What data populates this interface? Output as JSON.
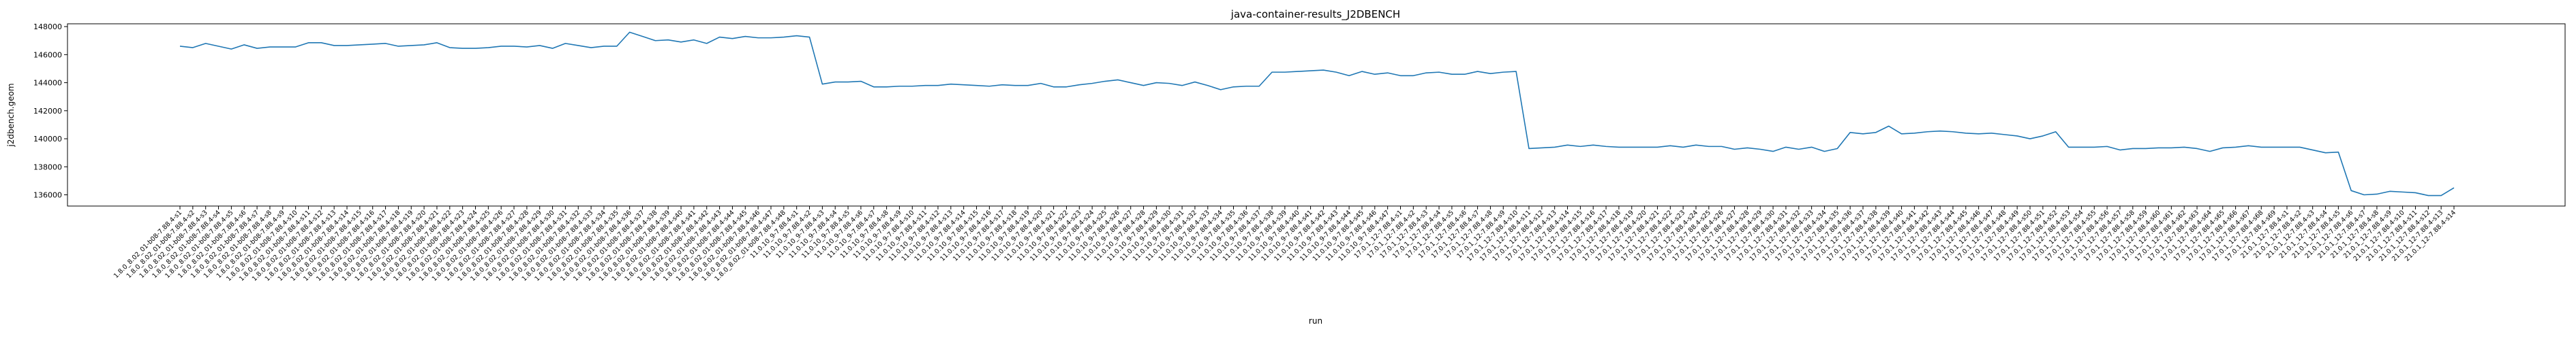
{
  "chart_data": {
    "type": "line",
    "title": "java-container-results_J2DBENCH",
    "xlabel": "run",
    "ylabel": "j2dbench.geom",
    "ylim": [
      135200,
      148200
    ],
    "yticks": [
      136000,
      138000,
      140000,
      142000,
      144000,
      146000,
      148000
    ],
    "ytick_labels": [
      "136000",
      "138000",
      "140000",
      "142000",
      "144000",
      "146000",
      "148000"
    ],
    "grid": false,
    "legend": "none",
    "line_color": "#1f77b4",
    "x": [
      "1.8.0_8.02_01-b08-7.88.4-s1",
      "1.8.0_8.02_01-b08-7.88.4-s2",
      "1.8.0_8.02_01-b08-7.88.4-s3",
      "1.8.0_8.02_01-b08-7.88.4-s4",
      "1.8.0_8.02_01-b08-7.88.4-s5",
      "1.8.0_8.02_01-b08-7.88.4-s6",
      "1.8.0_8.02_01-b08-7.88.4-s7",
      "1.8.0_8.02_01-b08-7.88.4-s8",
      "1.8.0_8.02_01-b08-7.88.4-s9",
      "1.8.0_8.02_01-b08-7.88.4-s10",
      "1.8.0_8.02_01-b08-7.88.4-s11",
      "1.8.0_8.02_01-b08-7.88.4-s12",
      "1.8.0_8.02_01-b08-7.88.4-s13",
      "1.8.0_8.02_01-b08-7.88.4-s14",
      "1.8.0_8.02_01-b08-7.88.4-s15",
      "1.8.0_8.02_01-b08-7.88.4-s16",
      "1.8.0_8.02_01-b08-7.88.4-s17",
      "1.8.0_8.02_01-b08-7.88.4-s18",
      "1.8.0_8.02_01-b08-7.88.4-s19",
      "1.8.0_8.02_01-b08-7.88.4-s20",
      "1.8.0_8.02_01-b08-7.88.4-s21",
      "1.8.0_8.02_01-b08-7.88.4-s22",
      "1.8.0_8.02_01-b08-7.88.4-s23",
      "1.8.0_8.02_01-b08-7.88.4-s24",
      "1.8.0_8.02_01-b08-7.88.4-s25",
      "1.8.0_8.02_01-b08-7.88.4-s26",
      "1.8.0_8.02_01-b08-7.88.4-s27",
      "1.8.0_8.02_01-b08-7.88.4-s28",
      "1.8.0_8.02_01-b08-7.88.4-s29",
      "1.8.0_8.02_01-b08-7.88.4-s30",
      "1.8.0_8.02_01-b08-7.88.4-s31",
      "1.8.0_8.02_01-b08-7.88.4-s32",
      "1.8.0_8.02_01-b08-7.88.4-s33",
      "1.8.0_8.02_01-b08-7.88.4-s34",
      "1.8.0_8.02_01-b08-7.88.4-s35",
      "1.8.0_8.02_01-b08-7.88.4-s36",
      "1.8.0_8.02_01-b08-7.88.4-s37",
      "1.8.0_8.02_01-b08-7.88.4-s38",
      "1.8.0_8.02_01-b08-7.88.4-s39",
      "1.8.0_8.02_01-b08-7.88.4-s40",
      "1.8.0_8.02_01-b08-7.88.4-s41",
      "1.8.0_8.02_01-b08-7.88.4-s42",
      "1.8.0_8.02_01-b08-7.88.4-s43",
      "1.8.0_8.02_01-b08-7.88.4-s44",
      "1.8.0_8.02_01-b08-7.88.4-s45",
      "1.8.0_8.02_01-b08-7.88.4-s46",
      "1.8.0_8.02_01-b08-7.88.4-s47",
      "1.8.0_8.02_01-b08-7.88.4-s48",
      "11.0.10_9-7.88.4-s1",
      "11.0.10_9-7.88.4-s2",
      "11.0.10_9-7.88.4-s3",
      "11.0.10_9-7.88.4-s4",
      "11.0.10_9-7.88.4-s5",
      "11.0.10_9-7.88.4-s6",
      "11.0.10_9-7.88.4-s7",
      "11.0.10_9-7.88.4-s8",
      "11.0.10_9-7.88.4-s9",
      "11.0.10_9-7.88.4-s10",
      "11.0.10_9-7.88.4-s11",
      "11.0.10_9-7.88.4-s12",
      "11.0.10_9-7.88.4-s13",
      "11.0.10_9-7.88.4-s14",
      "11.0.10_9-7.88.4-s15",
      "11.0.10_9-7.88.4-s16",
      "11.0.10_9-7.88.4-s17",
      "11.0.10_9-7.88.4-s18",
      "11.0.10_9-7.88.4-s19",
      "11.0.10_9-7.88.4-s20",
      "11.0.10_9-7.88.4-s21",
      "11.0.10_9-7.88.4-s22",
      "11.0.10_9-7.88.4-s23",
      "11.0.10_9-7.88.4-s24",
      "11.0.10_9-7.88.4-s25",
      "11.0.10_9-7.88.4-s26",
      "11.0.10_9-7.88.4-s27",
      "11.0.10_9-7.88.4-s28",
      "11.0.10_9-7.88.4-s29",
      "11.0.10_9-7.88.4-s30",
      "11.0.10_9-7.88.4-s31",
      "11.0.10_9-7.88.4-s32",
      "11.0.10_9-7.88.4-s33",
      "11.0.10_9-7.88.4-s34",
      "11.0.10_9-7.88.4-s35",
      "11.0.10_9-7.88.4-s36",
      "11.0.10_9-7.88.4-s37",
      "11.0.10_9-7.88.4-s38",
      "11.0.10_9-7.88.4-s39",
      "11.0.10_9-7.88.4-s40",
      "11.0.10_9-7.88.4-s41",
      "11.0.10_9-7.88.4-s42",
      "11.0.10_9-7.88.4-s43",
      "11.0.10_9-7.88.4-s44",
      "11.0.10_9-7.88.4-s45",
      "11.0.10_9-7.88.4-s46",
      "11.0.10_9-7.88.4-s47",
      "17.0.1_12-7.88.4-s1",
      "17.0.1_12-7.88.4-s2",
      "17.0.1_12-7.88.4-s3",
      "17.0.1_12-7.88.4-s4",
      "17.0.1_12-7.88.4-s5",
      "17.0.1_12-7.88.4-s6",
      "17.0.1_12-7.88.4-s7",
      "17.0.1_12-7.88.4-s8",
      "17.0.1_12-7.88.4-s9",
      "17.0.1_12-7.88.4-s10",
      "17.0.1_12-7.88.4-s11",
      "17.0.1_12-7.88.4-s12",
      "17.0.1_12-7.88.4-s13",
      "17.0.1_12-7.88.4-s14",
      "17.0.1_12-7.88.4-s15",
      "17.0.1_12-7.88.4-s16",
      "17.0.1_12-7.88.4-s17",
      "17.0.1_12-7.88.4-s18",
      "17.0.1_12-7.88.4-s19",
      "17.0.1_12-7.88.4-s20",
      "17.0.1_12-7.88.4-s21",
      "17.0.1_12-7.88.4-s22",
      "17.0.1_12-7.88.4-s23",
      "17.0.1_12-7.88.4-s24",
      "17.0.1_12-7.88.4-s25",
      "17.0.1_12-7.88.4-s26",
      "17.0.1_12-7.88.4-s27",
      "17.0.1_12-7.88.4-s28",
      "17.0.1_12-7.88.4-s29",
      "17.0.1_12-7.88.4-s30",
      "17.0.1_12-7.88.4-s31",
      "17.0.1_12-7.88.4-s32",
      "17.0.1_12-7.88.4-s33",
      "17.0.1_12-7.88.4-s34",
      "17.0.1_12-7.88.4-s35",
      "17.0.1_12-7.88.4-s36",
      "17.0.1_12-7.88.4-s37",
      "17.0.1_12-7.88.4-s38",
      "17.0.1_12-7.88.4-s39",
      "17.0.1_12-7.88.4-s40",
      "17.0.1_12-7.88.4-s41",
      "17.0.1_12-7.88.4-s42",
      "17.0.1_12-7.88.4-s43",
      "17.0.1_12-7.88.4-s44",
      "17.0.1_12-7.88.4-s45",
      "17.0.1_12-7.88.4-s46",
      "17.0.1_12-7.88.4-s47",
      "17.0.1_12-7.88.4-s48",
      "17.0.1_12-7.88.4-s49",
      "17.0.1_12-7.88.4-s50",
      "17.0.1_12-7.88.4-s51",
      "17.0.1_12-7.88.4-s52",
      "17.0.1_12-7.88.4-s53",
      "17.0.1_12-7.88.4-s54",
      "17.0.1_12-7.88.4-s55",
      "17.0.1_12-7.88.4-s56",
      "17.0.1_12-7.88.4-s57",
      "17.0.1_12-7.88.4-s58",
      "17.0.1_12-7.88.4-s59",
      "17.0.1_12-7.88.4-s60",
      "17.0.1_12-7.88.4-s61",
      "17.0.1_12-7.88.4-s62",
      "17.0.1_12-7.88.4-s63",
      "17.0.1_12-7.88.4-s64",
      "17.0.1_12-7.88.4-s65",
      "17.0.1_12-7.88.4-s66",
      "17.0.1_12-7.88.4-s67",
      "17.0.1_12-7.88.4-s68",
      "17.0.1_12-7.88.4-s69",
      "21.0.1_12-7.88.4-s1",
      "21.0.1_12-7.88.4-s2",
      "21.0.1_12-7.88.4-s3",
      "21.0.1_12-7.88.4-s4",
      "21.0.1_12-7.88.4-s5",
      "21.0.1_12-7.88.4-s6",
      "21.0.1_12-7.88.4-s7",
      "21.0.1_12-7.88.4-s8",
      "21.0.1_12-7.88.4-s9",
      "21.0.1_12-7.88.4-s10",
      "21.0.1_12-7.88.4-s11",
      "21.0.1_12-7.88.4-s12",
      "21.0.1_12-7.88.4-s13",
      "21.0.1_12-7.88.4-s14"
    ],
    "series": [
      {
        "values": [
          146600,
          146500,
          146800,
          146600,
          146400,
          146700,
          146450,
          146550,
          146550,
          146550,
          146850,
          146850,
          146650,
          146650,
          146700,
          146750,
          146800,
          146600,
          146650,
          146700,
          146850,
          146500,
          146450,
          146450,
          146500,
          146600,
          146600,
          146550,
          146650,
          146450,
          146800,
          146650,
          146500,
          146600,
          146600,
          147600,
          147300,
          147000,
          147050,
          146900,
          147050,
          146800,
          147250,
          147150,
          147300,
          147200,
          147200,
          147250,
          147350,
          147250,
          143900,
          144050,
          144050,
          144100,
          143700,
          143700,
          143750,
          143750,
          143800,
          143800,
          143900,
          143850,
          143800,
          143750,
          143850,
          143800,
          143800,
          143950,
          143700,
          143700,
          143850,
          143950,
          144100,
          144200,
          144000,
          143800,
          144000,
          143950,
          143800,
          144050,
          143800,
          143500,
          143700,
          143750,
          143750,
          144750,
          144750,
          144800,
          144850,
          144900,
          144750,
          144500,
          144800,
          144600,
          144700,
          144500,
          144500,
          144700,
          144750,
          144600,
          144600,
          144800,
          144650,
          144750,
          144800,
          139300,
          139350,
          139400,
          139550,
          139450,
          139550,
          139450,
          139400,
          139400,
          139400,
          139400,
          139500,
          139400,
          139550,
          139450,
          139450,
          139250,
          139350,
          139250,
          139100,
          139400,
          139250,
          139400,
          139100,
          139300,
          140450,
          140350,
          140450,
          140900,
          140350,
          140400,
          140500,
          140550,
          140500,
          140400,
          140350,
          140400,
          140300,
          140200,
          140000,
          140200,
          140500,
          139400,
          139400,
          139400,
          139450,
          139200,
          139300,
          139300,
          139350,
          139350,
          139400,
          139300,
          139100,
          139350,
          139400,
          139500,
          139400,
          139400,
          139400,
          139400,
          139200,
          139000,
          139050,
          136300,
          136000,
          136050,
          136250,
          136200,
          136150,
          135950,
          135950,
          136500
        ]
      }
    ]
  }
}
